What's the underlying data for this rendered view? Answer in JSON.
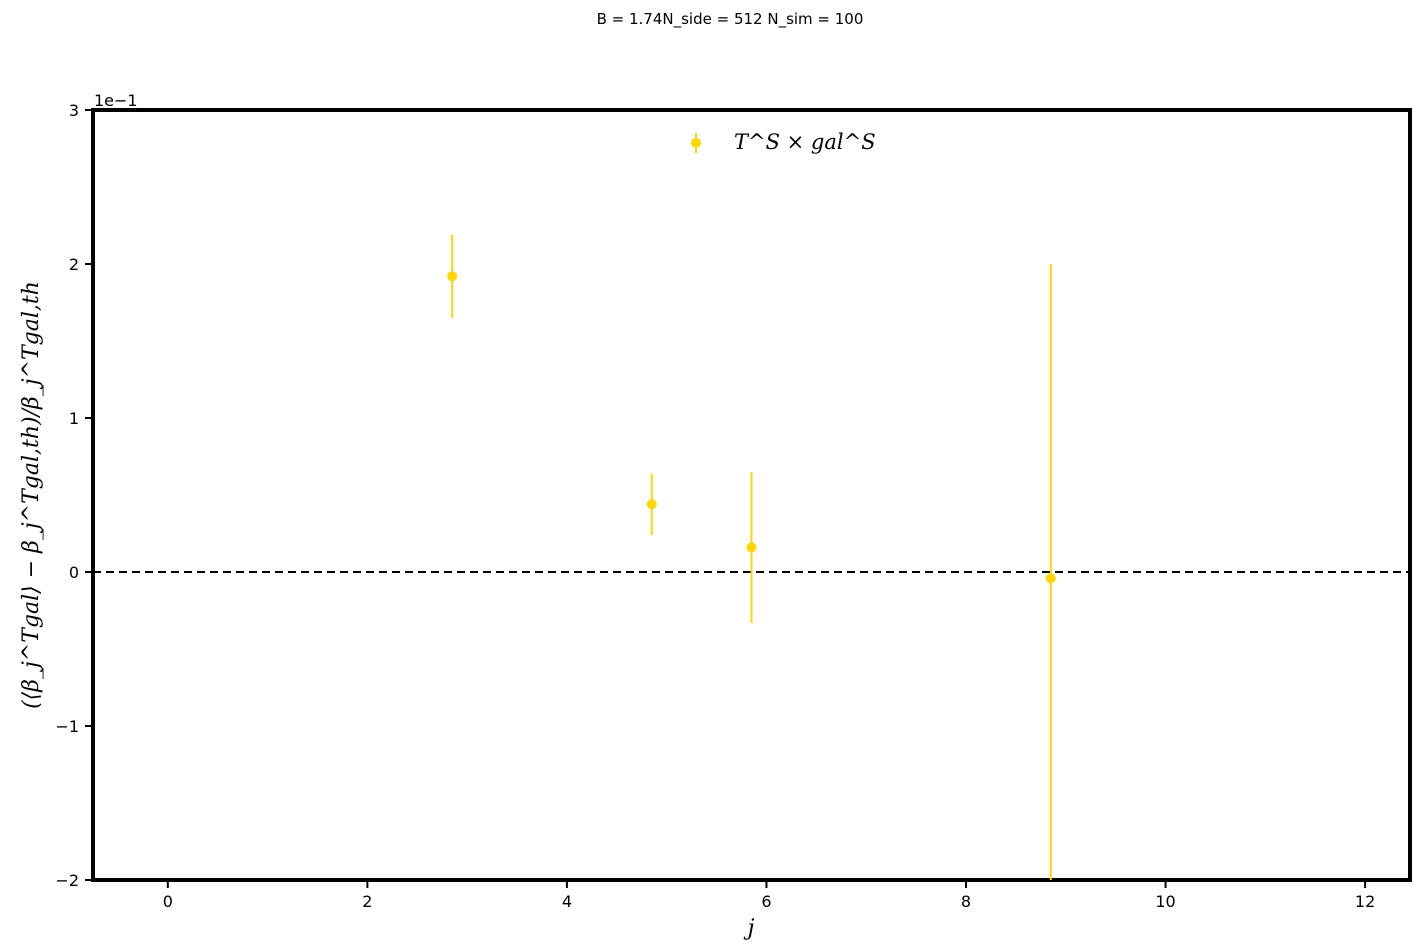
{
  "chart_data": {
    "type": "scatter",
    "title": "B = 1.74N_side = 512 N_sim = 100",
    "xlabel": "j",
    "ylabel": "(⟨β_j^Tgal⟩ − β_j^Tgal,th)/β_j^Tgal,th",
    "y_offset_label": "1e−1",
    "xlim": [
      -0.75,
      12.45
    ],
    "ylim": [
      -2,
      3
    ],
    "x_ticks": [
      0,
      2,
      4,
      6,
      8,
      10,
      12
    ],
    "x_tick_labels": [
      "0",
      "2",
      "4",
      "6",
      "8",
      "10",
      "12"
    ],
    "y_ticks": [
      -2,
      -1,
      0,
      1,
      2,
      3
    ],
    "y_tick_labels": [
      "−2",
      "−1",
      "0",
      "1",
      "2",
      "3"
    ],
    "reference_line": {
      "y": 0,
      "style": "dashed",
      "color": "#000000"
    },
    "legend": {
      "placement": "top-center",
      "label": "T^S × gal^S"
    },
    "series": [
      {
        "name": "T^S × gal^S",
        "color": "#ffd700",
        "points": [
          {
            "x": 2.85,
            "y": 1.92,
            "err": 0.27
          },
          {
            "x": 4.85,
            "y": 0.44,
            "err": 0.2
          },
          {
            "x": 5.85,
            "y": 0.16,
            "err": 0.49
          },
          {
            "x": 8.85,
            "y": -0.04,
            "err": 2.04
          }
        ]
      }
    ]
  }
}
